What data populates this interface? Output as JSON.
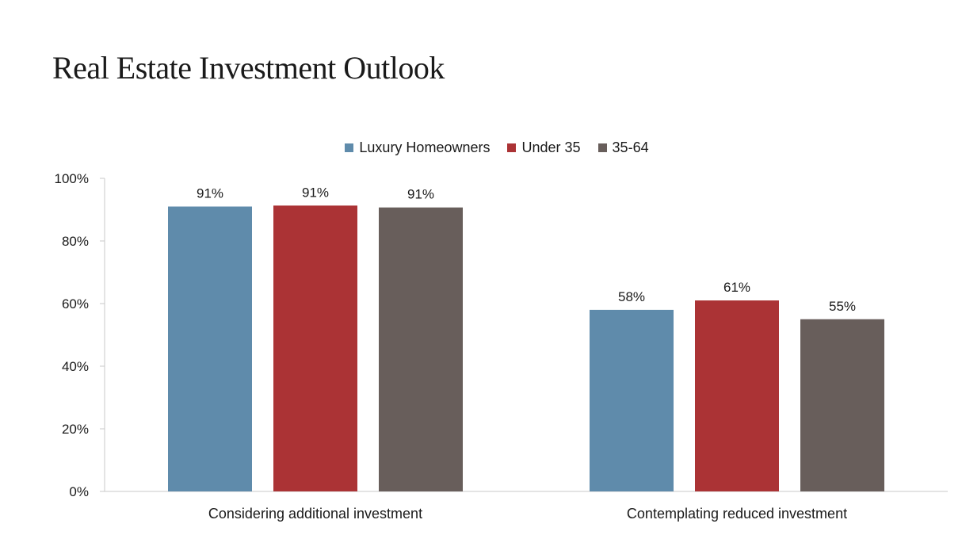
{
  "page": {
    "title": "Real Estate Investment Outlook"
  },
  "chart_data": {
    "type": "bar",
    "title": "",
    "xlabel": "",
    "ylabel": "",
    "categories": [
      "Considering additional investment",
      "Contemplating reduced investment"
    ],
    "series": [
      {
        "name": "Luxury Homeowners",
        "color": "#5f8bab",
        "values": [
          91,
          58
        ],
        "labels": [
          "91%",
          "58%"
        ]
      },
      {
        "name": "Under 35",
        "color": "#ab3335",
        "values": [
          91.3,
          61
        ],
        "labels": [
          "91%",
          "61%"
        ]
      },
      {
        "name": "35-64",
        "color": "#685e5b",
        "values": [
          90.7,
          55
        ],
        "labels": [
          "91%",
          "55%"
        ]
      }
    ],
    "ylim": [
      0,
      100
    ],
    "yticks": [
      {
        "value": 0,
        "label": "0%"
      },
      {
        "value": 20,
        "label": "20%"
      },
      {
        "value": 40,
        "label": "40%"
      },
      {
        "value": 60,
        "label": "60%"
      },
      {
        "value": 80,
        "label": "80%"
      },
      {
        "value": 100,
        "label": "100%"
      }
    ],
    "grid": false,
    "legend_position": "top-center"
  }
}
